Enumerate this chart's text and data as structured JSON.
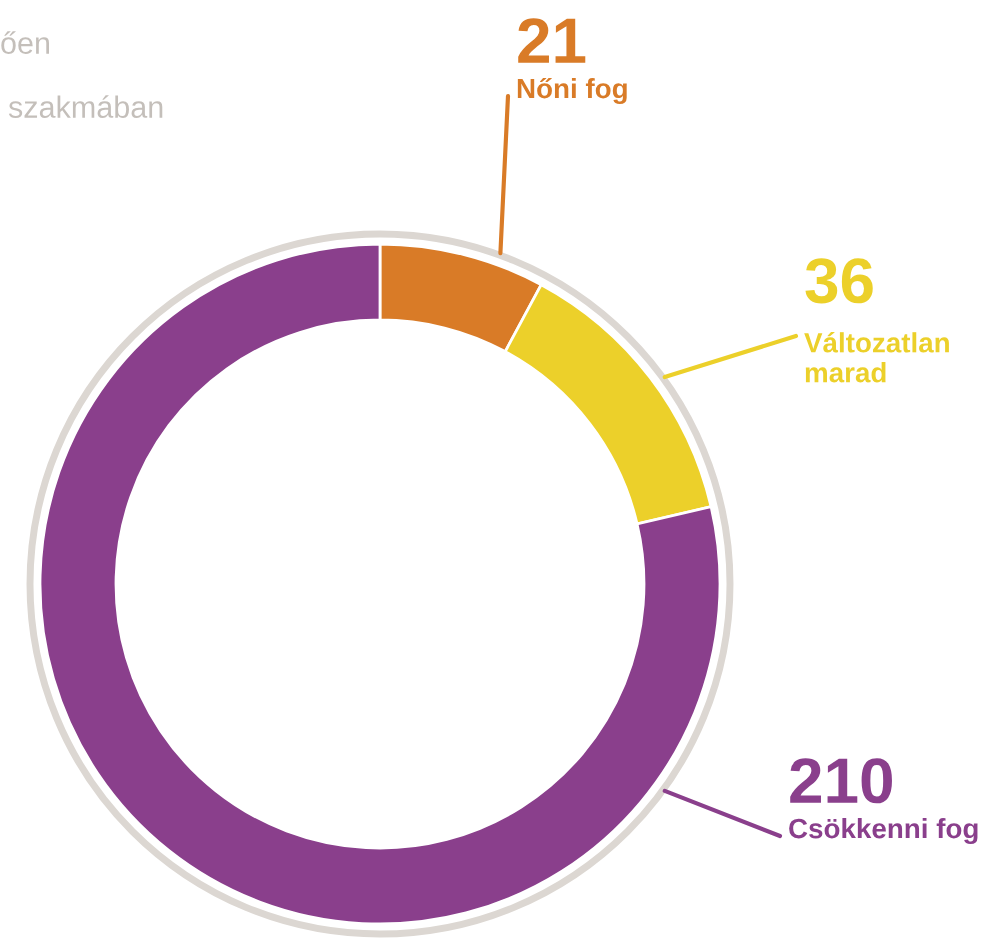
{
  "chart_data": {
    "type": "donut",
    "categories": [
      "Nőni fog",
      "Változatlan marad",
      "Csökkenni fog"
    ],
    "values": [
      21,
      36,
      210
    ],
    "colors": [
      "#d97b27",
      "#ecd02a",
      "#8a3f8c"
    ],
    "data_labels": true,
    "annotations": [
      "ően",
      "szakmában"
    ]
  }
}
